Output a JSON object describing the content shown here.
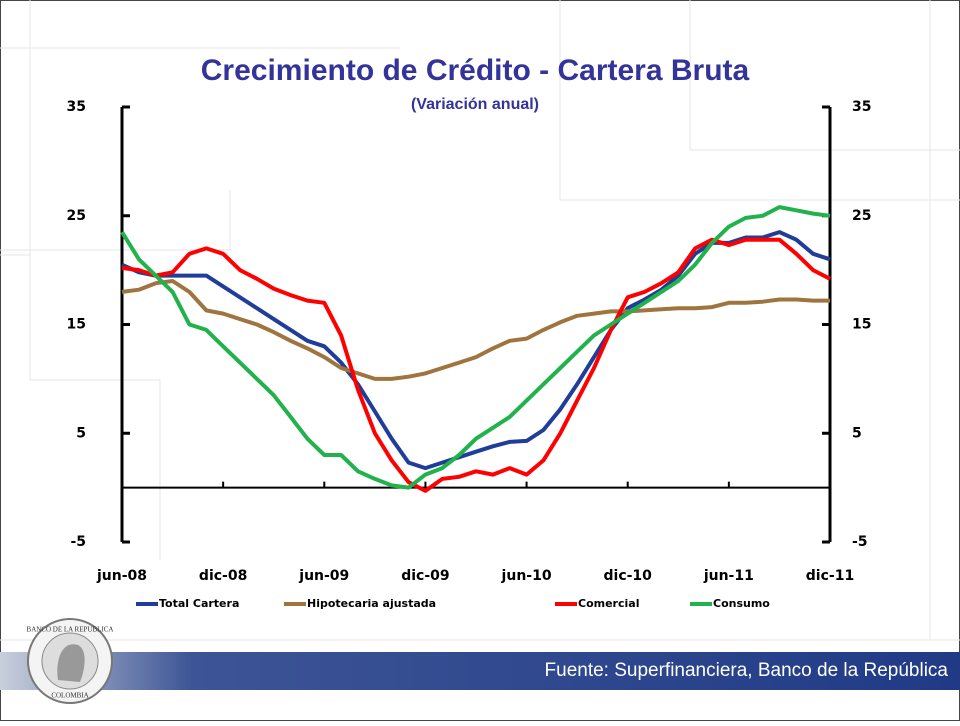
{
  "chart_data": {
    "type": "line",
    "title": "Crecimiento de Crédito - Cartera Bruta",
    "subtitle": "(Variación anual)",
    "categories": [
      "jun-08",
      null,
      null,
      null,
      null,
      null,
      "dic-08",
      null,
      null,
      null,
      null,
      null,
      "jun-09",
      null,
      null,
      null,
      null,
      null,
      "dic-09",
      null,
      null,
      null,
      null,
      null,
      "jun-10",
      null,
      null,
      null,
      null,
      null,
      "dic-10",
      null,
      null,
      null,
      null,
      null,
      "jun-11",
      null,
      null,
      null,
      null,
      null,
      "dic-11"
    ],
    "series": [
      {
        "name": "Total Cartera",
        "color": "#1f3d99",
        "values": [
          20.5,
          19.8,
          19.5,
          19.5,
          19.5,
          19.5,
          18.5,
          17.5,
          16.5,
          15.5,
          14.5,
          13.5,
          13,
          11.5,
          9.5,
          7,
          4.5,
          2.3,
          1.8,
          2.3,
          2.8,
          3.3,
          3.8,
          4.2,
          4.3,
          5.3,
          7.2,
          9.5,
          12,
          14.5,
          16.5,
          17.3,
          18.2,
          19.5,
          21.5,
          22.5,
          22.5,
          23,
          23,
          23.5,
          22.8,
          21.5,
          21
        ]
      },
      {
        "name": "Hipotecaria ajustada",
        "color": "#a0743f",
        "values": [
          18,
          18.2,
          18.8,
          19,
          18,
          16.3,
          16,
          15.5,
          15,
          14.3,
          13.5,
          12.8,
          12,
          11,
          10.5,
          10,
          10,
          10.2,
          10.5,
          11,
          11.5,
          12,
          12.8,
          13.5,
          13.7,
          14.5,
          15.2,
          15.8,
          16,
          16.2,
          16.2,
          16.3,
          16.4,
          16.5,
          16.5,
          16.6,
          17,
          17,
          17.1,
          17.3,
          17.3,
          17.2,
          17.2
        ]
      },
      {
        "name": "Comercial",
        "color": "#ff0000",
        "values": [
          20.2,
          20,
          19.5,
          19.8,
          21.5,
          22,
          21.5,
          20,
          19.2,
          18.3,
          17.7,
          17.2,
          17,
          14,
          9,
          5,
          2.5,
          0.5,
          -0.3,
          0.8,
          1,
          1.5,
          1.2,
          1.8,
          1.2,
          2.5,
          5,
          8,
          11,
          14.5,
          17.5,
          18,
          18.8,
          19.8,
          22,
          22.8,
          22.3,
          22.8,
          22.8,
          22.8,
          21.5,
          20,
          19.2
        ]
      },
      {
        "name": "Consumo",
        "color": "#21b24b",
        "values": [
          23.5,
          21,
          19.5,
          18,
          15,
          14.5,
          13,
          11.5,
          10,
          8.5,
          6.5,
          4.5,
          3,
          3,
          1.5,
          0.8,
          0.2,
          0,
          1.2,
          1.8,
          3,
          4.5,
          5.5,
          6.5,
          8,
          9.5,
          11,
          12.5,
          14,
          15,
          16,
          17,
          18,
          19,
          20.5,
          22.5,
          24,
          24.8,
          25,
          25.8,
          25.5,
          25.2,
          25
        ]
      }
    ],
    "ylim": [
      -5,
      35
    ],
    "yticks": [
      -5,
      5,
      15,
      25,
      35
    ],
    "y2lim": [
      -5,
      35
    ],
    "y2ticks": [
      -5,
      5,
      15,
      25,
      35
    ],
    "legend": "bottom"
  },
  "logo": {
    "top": "BANCO DE LA REPUBLICA",
    "bottom": "COLOMBIA"
  },
  "footer": "Fuente: Superfinanciera, Banco de la República"
}
